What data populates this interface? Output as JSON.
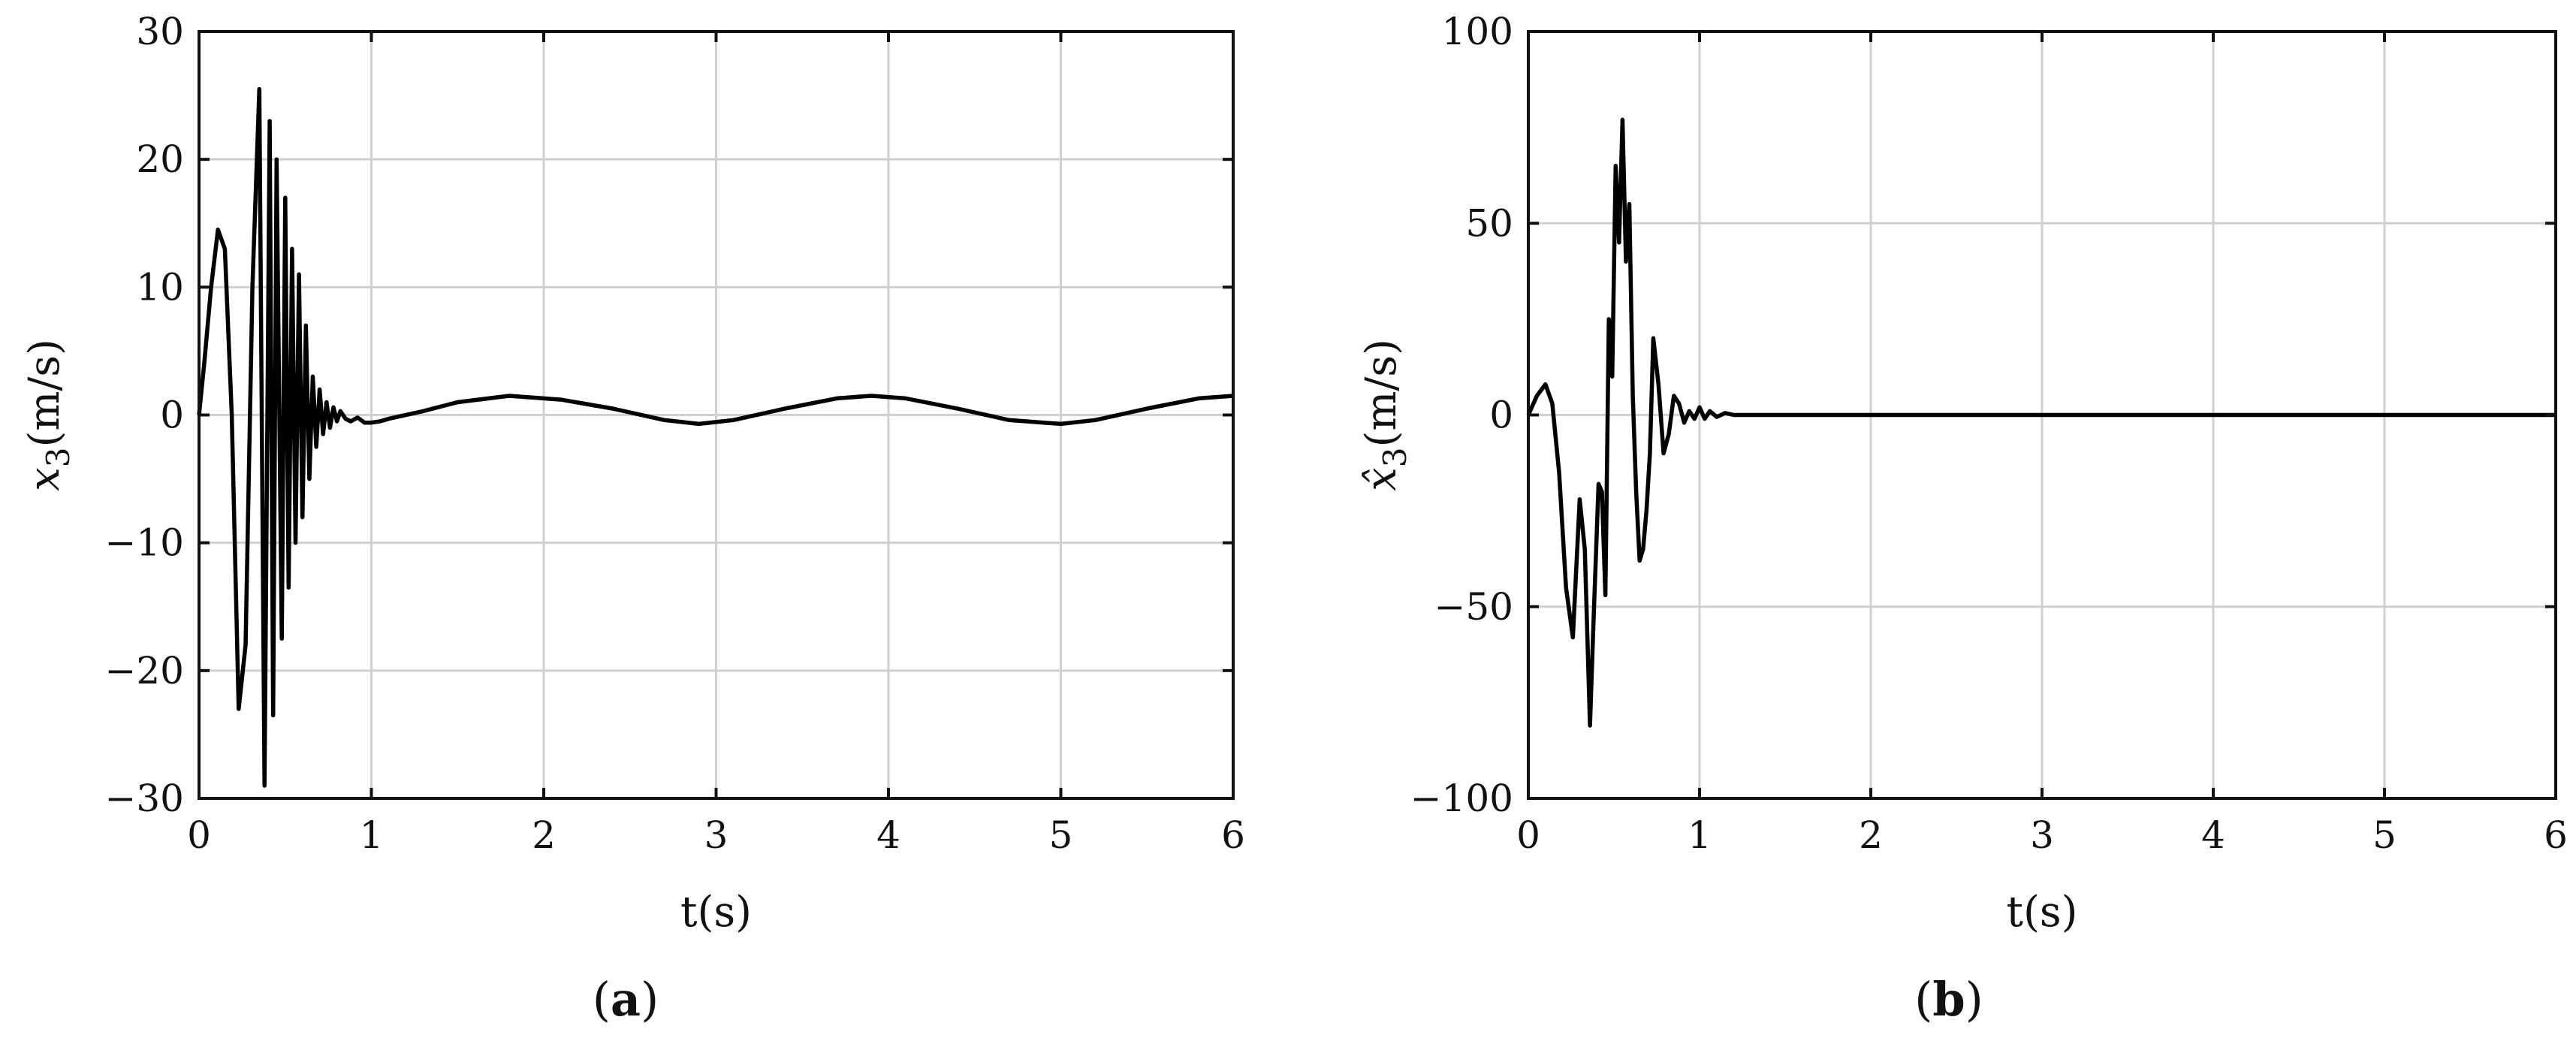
{
  "chart_data": [
    {
      "type": "line",
      "panel_label": "(a)",
      "xlabel": "t(s)",
      "ylabel": "x3(m/s)",
      "ylabel_main": "x",
      "ylabel_sub": "3",
      "ylabel_unit": "(m/s)",
      "xlim": [
        0,
        6
      ],
      "ylim": [
        -30,
        30
      ],
      "xticks": [
        0,
        1,
        2,
        3,
        4,
        5,
        6
      ],
      "yticks": [
        -30,
        -20,
        -10,
        0,
        10,
        20,
        30
      ],
      "xtick_labels": [
        "0",
        "1",
        "2",
        "3",
        "4",
        "5",
        "6"
      ],
      "ytick_labels": [
        "−30",
        "−20",
        "−10",
        "0",
        "10",
        "20",
        "30"
      ],
      "grid": true,
      "series": [
        {
          "color": "#000000",
          "x": [
            0,
            0.03,
            0.07,
            0.11,
            0.15,
            0.19,
            0.23,
            0.27,
            0.31,
            0.35,
            0.38,
            0.41,
            0.43,
            0.45,
            0.48,
            0.5,
            0.52,
            0.54,
            0.56,
            0.58,
            0.6,
            0.62,
            0.64,
            0.66,
            0.68,
            0.7,
            0.72,
            0.74,
            0.76,
            0.78,
            0.8,
            0.82,
            0.85,
            0.88,
            0.92,
            0.96,
            1.0,
            1.05,
            1.1,
            1.3,
            1.5,
            1.8,
            2.1,
            2.4,
            2.7,
            2.9,
            3.1,
            3.4,
            3.7,
            3.9,
            4.1,
            4.4,
            4.7,
            5.0,
            5.2,
            5.5,
            5.8,
            6.0
          ],
          "values": [
            0,
            4,
            10,
            14.5,
            13,
            0,
            -23,
            -18,
            10,
            25.5,
            -29,
            23,
            -23.5,
            20,
            -17.5,
            17,
            -13.5,
            13,
            -10,
            11,
            -8,
            7,
            -5,
            3,
            -2.5,
            2,
            -1.5,
            1,
            -1,
            0.6,
            -0.5,
            0.3,
            -0.3,
            -0.5,
            -0.2,
            -0.6,
            -0.6,
            -0.5,
            -0.3,
            0.3,
            1.0,
            1.5,
            1.2,
            0.5,
            -0.4,
            -0.7,
            -0.4,
            0.5,
            1.3,
            1.5,
            1.3,
            0.5,
            -0.4,
            -0.7,
            -0.4,
            0.5,
            1.3,
            1.5
          ]
        }
      ]
    },
    {
      "type": "line",
      "panel_label": "(b)",
      "xlabel": "t(s)",
      "ylabel": "x̂3(m/s)",
      "ylabel_main": "x̂",
      "ylabel_sub": "3",
      "ylabel_unit": "(m/s)",
      "xlim": [
        0,
        6
      ],
      "ylim": [
        -100,
        100
      ],
      "xticks": [
        0,
        1,
        2,
        3,
        4,
        5,
        6
      ],
      "yticks": [
        -100,
        -50,
        0,
        50,
        100
      ],
      "xtick_labels": [
        "0",
        "1",
        "2",
        "3",
        "4",
        "5",
        "6"
      ],
      "ytick_labels": [
        "−100",
        "−50",
        "0",
        "50",
        "100"
      ],
      "grid": true,
      "series": [
        {
          "color": "#000000",
          "x": [
            0,
            0.05,
            0.1,
            0.14,
            0.18,
            0.22,
            0.26,
            0.3,
            0.33,
            0.36,
            0.38,
            0.41,
            0.43,
            0.45,
            0.47,
            0.49,
            0.51,
            0.53,
            0.55,
            0.57,
            0.59,
            0.61,
            0.63,
            0.65,
            0.67,
            0.69,
            0.71,
            0.73,
            0.76,
            0.79,
            0.82,
            0.85,
            0.88,
            0.91,
            0.94,
            0.97,
            1.0,
            1.03,
            1.06,
            1.1,
            1.15,
            1.2,
            1.3,
            1.5,
            2.0,
            3.0,
            4.0,
            5.0,
            6.0
          ],
          "values": [
            0,
            5,
            8,
            3,
            -15,
            -45,
            -58,
            -22,
            -35,
            -81,
            -55,
            -18,
            -20,
            -47,
            25,
            10,
            65,
            45,
            77,
            40,
            55,
            5,
            -20,
            -38,
            -35,
            -25,
            -10,
            20,
            8,
            -10,
            -5,
            5,
            3,
            -2,
            1,
            -1,
            2,
            -1,
            1,
            -0.5,
            0.5,
            0,
            0,
            0,
            0,
            0,
            0,
            0,
            0
          ]
        }
      ]
    }
  ]
}
